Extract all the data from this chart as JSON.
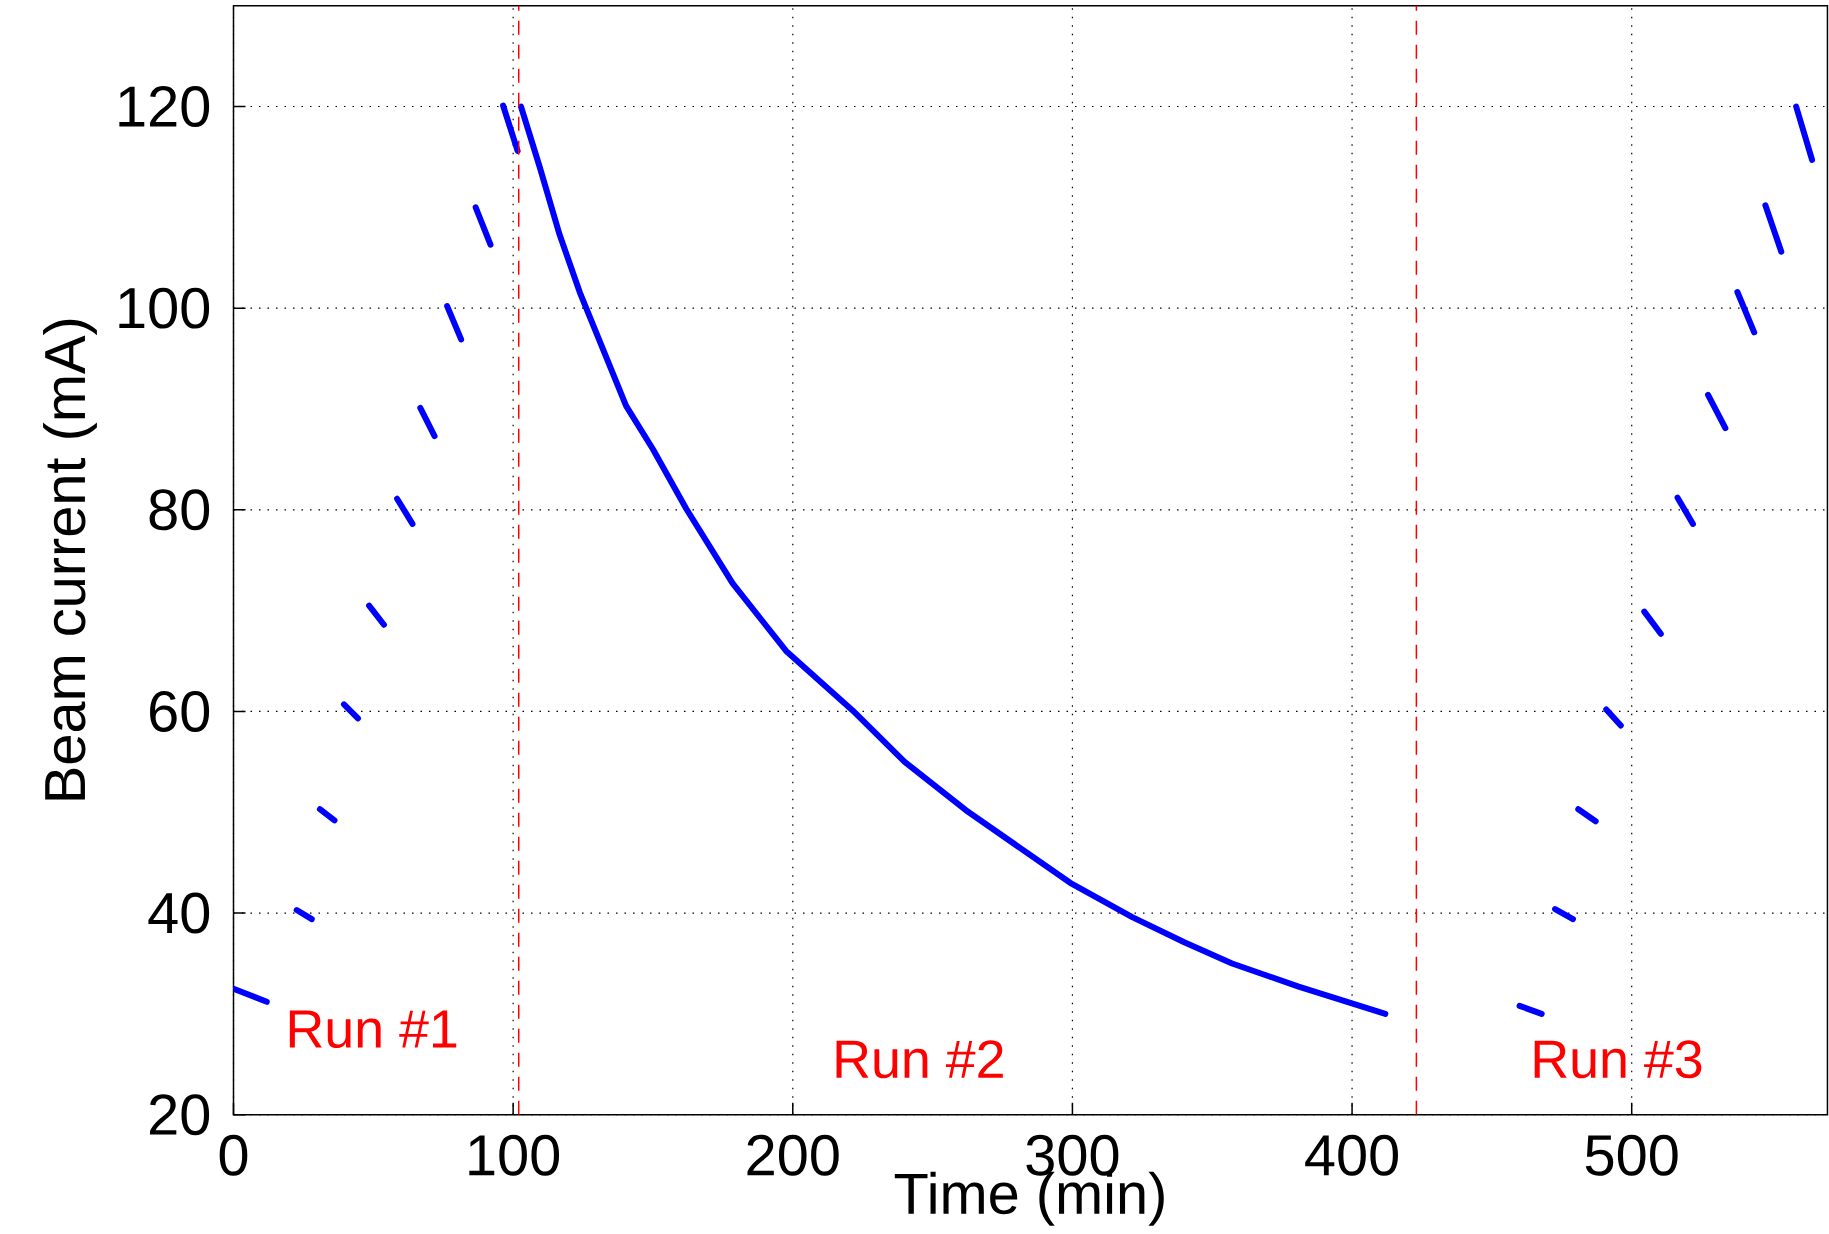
{
  "chart_data": {
    "type": "line",
    "xlabel": "Time (min)",
    "ylabel": "Beam current (mA)",
    "xlim": [
      0,
      570
    ],
    "ylim": [
      20,
      130
    ],
    "xticks": [
      0,
      100,
      200,
      300,
      400,
      500
    ],
    "yticks": [
      20,
      40,
      60,
      80,
      100,
      120
    ],
    "grid": true,
    "line_style": "solid",
    "series": [
      {
        "color": "#0000ff",
        "x": [
          0,
          11.9,
          11.95,
          22.6,
          28,
          28.05,
          30.9,
          36.1,
          36.15,
          39.5,
          44.5,
          44.55,
          48.5,
          53.8,
          53.85,
          58.5,
          64,
          64.05,
          66.8,
          71.9,
          71.95,
          76.4,
          81.4,
          81.45,
          86.6,
          91.9,
          91.95,
          96.4,
          101.6,
          101.65,
          102.8,
          109.5,
          116.6,
          123.8,
          140.4,
          150,
          161.9,
          178.5,
          197.6,
          221.4,
          240,
          261.9,
          299.2,
          321.4,
          340,
          357.1,
          380.9,
          411.9,
          411.95,
          459.9,
          467.8,
          467.85,
          472.6,
          479,
          479.05,
          480.9,
          487.1,
          487.15,
          490.9,
          496.1,
          496.15,
          504.5,
          510.4,
          510.45,
          516.4,
          521.9,
          521.95,
          527.3,
          533.5,
          533.55,
          537.8,
          543.8,
          543.85,
          547.8,
          553.5,
          553.55,
          558.8,
          564.5
        ],
        "values": [
          32.5,
          31.2,
          null,
          40.3,
          39.4,
          null,
          50.3,
          49.2,
          null,
          60.7,
          59.3,
          null,
          70.5,
          68.6,
          null,
          81.1,
          78.6,
          null,
          90.1,
          87.3,
          null,
          100.2,
          96.9,
          null,
          110,
          106.3,
          null,
          120.1,
          115.6,
          null,
          120,
          114,
          107.3,
          101.6,
          90.3,
          86,
          80.1,
          72.7,
          66,
          60.1,
          55,
          50.2,
          43,
          39.6,
          37.1,
          35,
          32.7,
          30,
          null,
          30.8,
          30,
          null,
          40.4,
          39.4,
          null,
          50.3,
          49.1,
          null,
          60.2,
          58.6,
          null,
          69.9,
          67.7,
          null,
          81.2,
          78.6,
          null,
          91.4,
          88.1,
          null,
          101.6,
          97.6,
          null,
          110.2,
          105.6,
          null,
          120,
          114.7
        ]
      }
    ],
    "ref_lines": [
      {
        "axis": "x",
        "value": 102,
        "color": "#ff0000",
        "line_style": "dashed"
      },
      {
        "axis": "x",
        "value": 423,
        "color": "#ff0000",
        "line_style": "dashed"
      }
    ],
    "annotations": [
      "Run #1",
      "Run #2",
      "Run #3"
    ]
  }
}
